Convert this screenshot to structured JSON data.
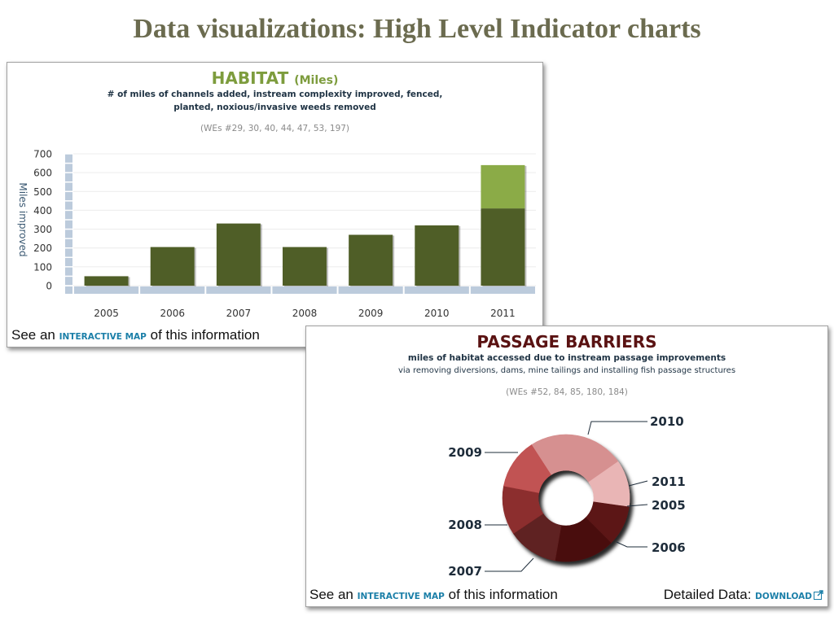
{
  "slide": {
    "title": "Data visualizations: High Level Indicator charts"
  },
  "habitat": {
    "footer": {
      "prefix": "See an",
      "link": "INTERACTIVE MAP",
      "suffix": "of this information"
    }
  },
  "passage": {
    "footer": {
      "prefix": "See an",
      "link": "INTERACTIVE MAP",
      "suffix": "of this information",
      "detail_label": "Detailed Data:",
      "download_link": "DOWNLOAD"
    },
    "icons": {
      "download": "external-link-icon"
    }
  },
  "colors": {
    "slide_title": "#6b6b4f",
    "habitat_title": "#7d9c3d",
    "passage_title": "#5a1212",
    "subtitle": "#1f3344",
    "note": "#8a8a8a",
    "link": "#1b7fa8",
    "axis": "#bccbdc"
  },
  "chart_data": [
    {
      "type": "bar",
      "title": "HABITAT",
      "title_unit": "(Miles)",
      "subtitle": [
        "# of miles of channels added, instream complexity improved, fenced,",
        "planted, noxious/invasive weeds removed"
      ],
      "note": "(WEs #29, 30, 40, 44, 47, 53, 197)",
      "ylabel": "Miles improved",
      "categories": [
        "2005",
        "2006",
        "2007",
        "2008",
        "2009",
        "2010",
        "2011"
      ],
      "yticks": [
        "0",
        "100",
        "200",
        "300",
        "400",
        "500",
        "600",
        "700"
      ],
      "ylim": [
        0,
        700
      ],
      "stacked": true,
      "grid": true,
      "series": [
        {
          "color": "#4f5e27",
          "values": [
            50,
            205,
            330,
            205,
            270,
            320,
            410
          ]
        },
        {
          "color": "#8bab47",
          "values": [
            0,
            0,
            0,
            0,
            0,
            0,
            230
          ]
        }
      ]
    },
    {
      "type": "pie",
      "donut": true,
      "title": "PASSAGE BARRIERS",
      "subtitle": [
        "miles of habitat accessed due to instream passage improvements",
        "via removing diversions, dams, mine tailings and installing fish passage structures"
      ],
      "note": "(WEs #52, 84, 85, 180, 184)",
      "slices": [
        {
          "label": "2010",
          "value": 88,
          "color": "#d69090"
        },
        {
          "label": "2011",
          "value": 43,
          "color": "#e9b5b5"
        },
        {
          "label": "2005",
          "value": 37,
          "color": "#5c1616"
        },
        {
          "label": "2006",
          "value": 55,
          "color": "#4a0f0f"
        },
        {
          "label": "2007",
          "value": 46,
          "color": "#5f2020"
        },
        {
          "label": "2008",
          "value": 45,
          "color": "#8c2e2e"
        },
        {
          "label": "2009",
          "value": 46,
          "color": "#c15252"
        }
      ]
    }
  ]
}
